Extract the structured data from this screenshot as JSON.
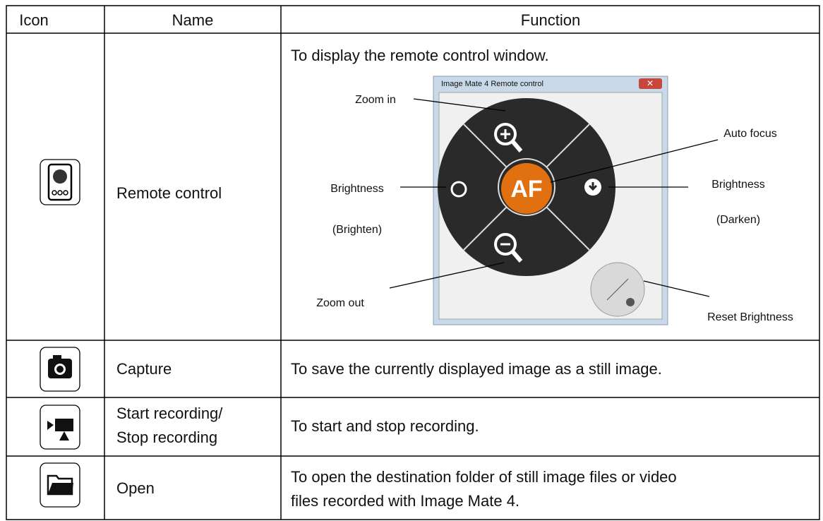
{
  "table": {
    "headers": [
      "Icon",
      "Name",
      "Function"
    ],
    "rows": [
      {
        "name": [
          "Remote control"
        ],
        "function": [
          "To display the remote control window."
        ]
      },
      {
        "name": [
          "Capture"
        ],
        "function": [
          "To save the currently displayed image as a still image."
        ]
      },
      {
        "name": [
          "Start recording/",
          "Stop recording"
        ],
        "function": [
          "To start and stop recording."
        ]
      },
      {
        "name": [
          "Open"
        ],
        "function": [
          "To open the destination folder of still image files or video",
          "files recorded with Image Mate 4."
        ]
      }
    ]
  },
  "remote_window": {
    "title": "Image Mate 4 Remote control",
    "af_button": "AF",
    "callouts": {
      "zoom_in": "Zoom in",
      "auto_focus": "Auto focus",
      "brighten": [
        "Brightness",
        "(Brighten)"
      ],
      "darken": [
        "Brightness",
        "(Darken)"
      ],
      "zoom_out": "Zoom out",
      "reset": "Reset Brightness"
    }
  }
}
